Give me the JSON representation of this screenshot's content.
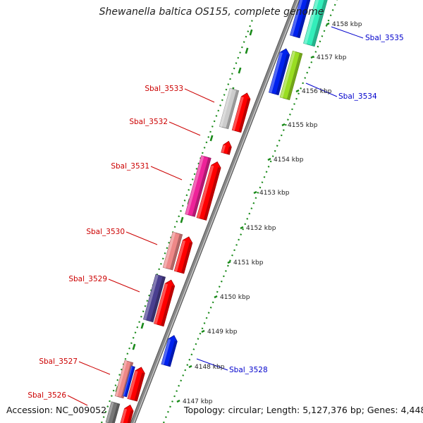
{
  "title": "Shewanella baltica OS155, complete genome",
  "footer": {
    "accession": "Accession: NC_009052",
    "summary": "Topology: circular; Length: 5,127,376 bp; Genes: 4,448"
  },
  "scale_ticks": [
    "4147 kbp",
    "4148 kbp",
    "4149 kbp",
    "4150 kbp",
    "4151 kbp",
    "4152 kbp",
    "4153 kbp",
    "4154 kbp",
    "4155 kbp",
    "4156 kbp",
    "4157 kbp",
    "4158 kbp"
  ],
  "gene_labels": [
    {
      "text": "Sbal_3535",
      "strand": "forward",
      "color": "#0000cc"
    },
    {
      "text": "Sbal_3534",
      "strand": "forward",
      "color": "#0000cc"
    },
    {
      "text": "Sbal_3533",
      "strand": "reverse",
      "color": "#cc0000"
    },
    {
      "text": "Sbal_3532",
      "strand": "reverse",
      "color": "#cc0000"
    },
    {
      "text": "Sbal_3531",
      "strand": "reverse",
      "color": "#cc0000"
    },
    {
      "text": "Sbal_3530",
      "strand": "reverse",
      "color": "#cc0000"
    },
    {
      "text": "Sbal_3529",
      "strand": "reverse",
      "color": "#cc0000"
    },
    {
      "text": "Sbal_3528",
      "strand": "forward",
      "color": "#0000cc"
    },
    {
      "text": "Sbal_3527",
      "strand": "reverse",
      "color": "#cc0000"
    },
    {
      "text": "Sbal_3526",
      "strand": "reverse",
      "color": "#cc0000"
    }
  ],
  "colors": {
    "forward_strand": "#0022ee",
    "reverse_strand": "#ff0000",
    "backbone": "#888888",
    "dots": "#1a8a1a",
    "cog_gray": "#cccccc",
    "cog_magenta": "#ee2299",
    "cog_salmon": "#ee8888",
    "cog_navy": "#4a3f90",
    "cog_teal": "#33eebb",
    "cog_lime": "#99dd22"
  }
}
